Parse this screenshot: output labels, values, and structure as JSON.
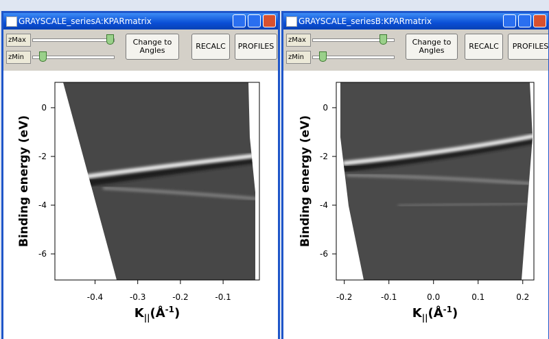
{
  "windows": [
    {
      "title": "GRAYSCALE_seriesA:KPARmatrix",
      "controls": {
        "zmax": "zMax",
        "zmin": "zMin",
        "change": "Change to Angles",
        "recalc": "RECALC",
        "profiles": "PROFILES"
      },
      "plot": {
        "ylabel": "Binding energy (eV)",
        "xlabel": {
          "main": "K",
          "sub": "||",
          "open": "(Å",
          "sup": "-1",
          "close": ")"
        },
        "xlim": [
          -0.494,
          -0.015
        ],
        "ylim": [
          -7.07,
          1.04
        ],
        "xticks": [
          -0.4,
          -0.3,
          -0.2,
          -0.1
        ],
        "yticks": [
          0,
          -2,
          -4,
          -6
        ]
      }
    },
    {
      "title": "GRAYSCALE_seriesB:KPARmatrix",
      "controls": {
        "zmax": "zMax",
        "zmin": "zMin",
        "change": "Change to Angles",
        "recalc": "RECALC",
        "profiles": "PROFILES"
      },
      "plot": {
        "ylabel": "Binding energy (eV)",
        "xlabel": {
          "main": "K",
          "sub": "||",
          "open": "(Å",
          "sup": "-1",
          "close": ")"
        },
        "xlim": [
          -0.218,
          0.225
        ],
        "ylim": [
          -7.07,
          1.04
        ],
        "xticks": [
          -0.2,
          -0.1,
          {
            "value": 0,
            "label": "0.0"
          },
          0.1,
          0.2
        ],
        "yticks": [
          0,
          -2,
          -4,
          -6
        ]
      }
    }
  ]
}
